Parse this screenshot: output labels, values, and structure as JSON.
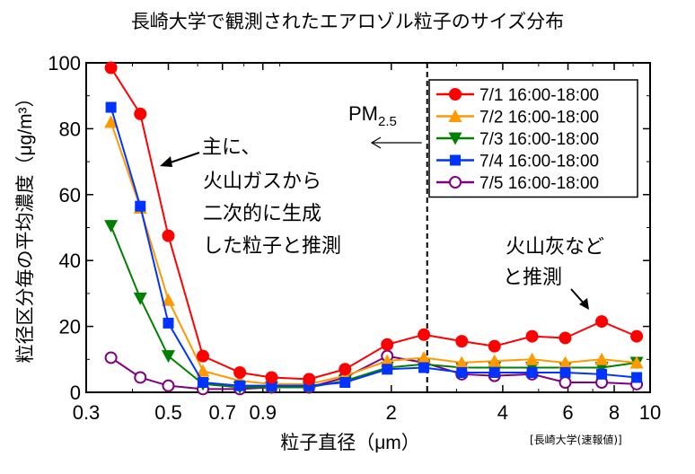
{
  "chart_data": {
    "type": "line",
    "title": "長崎大学で観測されたエアロゾル粒子のサイズ分布",
    "xlabel": "粒子直径（μm）",
    "ylabel": "粒径区分毎の平均濃度（μg/m³）",
    "x_scale": "log",
    "xlim": [
      0.3,
      10
    ],
    "ylim": [
      0,
      100
    ],
    "x_ticks": [
      {
        "value": 0.3,
        "label": "0.3"
      },
      {
        "value": 0.5,
        "label": "0.5"
      },
      {
        "value": 0.7,
        "label": "0.7"
      },
      {
        "value": 0.9,
        "label": "0.9"
      },
      {
        "value": 2,
        "label": "2"
      },
      {
        "value": 4,
        "label": "4"
      },
      {
        "value": 6,
        "label": "6"
      },
      {
        "value": 8,
        "label": "8"
      },
      {
        "value": 10,
        "label": "10"
      }
    ],
    "y_ticks": [
      0,
      20,
      40,
      60,
      80,
      100
    ],
    "grid": false,
    "legend_position": "top-right",
    "x": [
      0.35,
      0.42,
      0.5,
      0.62,
      0.78,
      0.95,
      1.2,
      1.5,
      1.95,
      2.45,
      3.1,
      3.8,
      4.8,
      5.9,
      7.4,
      9.2
    ],
    "series": [
      {
        "name": "7/1 16:00-18:00",
        "color": "#ff0000",
        "marker": "circle",
        "values": [
          98.5,
          84.5,
          47.5,
          11,
          6,
          4.5,
          4,
          7,
          14.5,
          17.5,
          15.5,
          14,
          17,
          16.5,
          21.5,
          17
        ]
      },
      {
        "name": "7/2 16:00-18:00",
        "color": "#ff9900",
        "marker": "triangle-up",
        "values": [
          82,
          56,
          28,
          6.5,
          3.5,
          2.5,
          2.5,
          5,
          9.5,
          10.5,
          9,
          9.5,
          10,
          9,
          10,
          9
        ]
      },
      {
        "name": "7/3 16:00-18:00",
        "color": "#008000",
        "marker": "triangle-down",
        "values": [
          50.5,
          28.5,
          11,
          2.5,
          1.5,
          1.5,
          1.5,
          3.5,
          7.5,
          8.5,
          7.5,
          7.5,
          7.5,
          7.5,
          7.5,
          9
        ]
      },
      {
        "name": "7/4 16:00-18:00",
        "color": "#0033ff",
        "marker": "square",
        "values": [
          86.5,
          56.5,
          21,
          3,
          2,
          2,
          2,
          3,
          7,
          7.5,
          6,
          6,
          6,
          6,
          5.5,
          4.5
        ]
      },
      {
        "name": "7/5 16:00-18:00",
        "color": "#800080",
        "marker": "circle-open",
        "values": [
          10.5,
          4.5,
          2,
          1,
          1,
          1.5,
          1.5,
          4.5,
          11,
          9,
          5.5,
          5,
          5.5,
          3,
          3,
          2.5
        ]
      }
    ],
    "reference_line": {
      "x": 2.5,
      "label_main": "PM",
      "label_sub": "2.5"
    },
    "annotations": [
      {
        "lines": [
          "主に、",
          "火山ガスから",
          "二次的に生成",
          "した粒子と推測"
        ]
      },
      {
        "lines": [
          "火山灰など",
          "と推測"
        ]
      }
    ]
  },
  "credit": "[長崎大学(速報値)]"
}
